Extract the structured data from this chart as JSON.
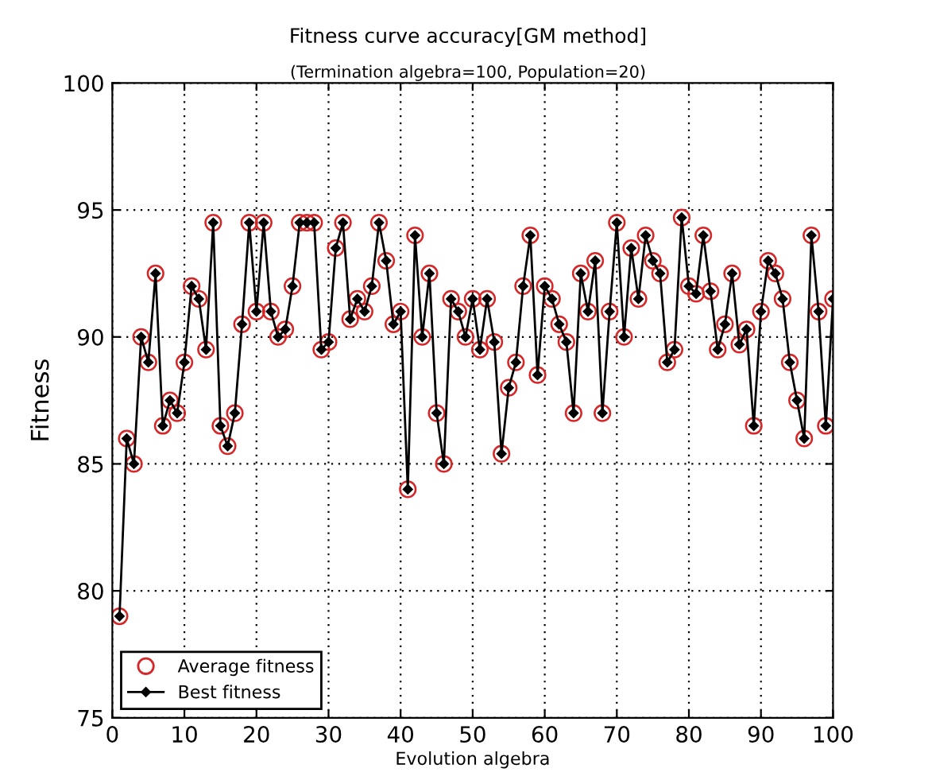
{
  "chart_data": {
    "type": "line",
    "title": "Fitness curve accuracy[GM method]",
    "subtitle": "(Termination algebra=100, Population=20)",
    "xlabel": "Evolution algebra",
    "ylabel": "Fitness",
    "x": [
      1,
      2,
      3,
      4,
      5,
      6,
      7,
      8,
      9,
      10,
      11,
      12,
      13,
      14,
      15,
      16,
      17,
      18,
      19,
      20,
      21,
      22,
      23,
      24,
      25,
      26,
      27,
      28,
      29,
      30,
      31,
      32,
      33,
      34,
      35,
      36,
      37,
      38,
      39,
      40,
      41,
      42,
      43,
      44,
      45,
      46,
      47,
      48,
      49,
      50,
      51,
      52,
      53,
      54,
      55,
      56,
      57,
      58,
      59,
      60,
      61,
      62,
      63,
      64,
      65,
      66,
      67,
      68,
      69,
      70,
      71,
      72,
      73,
      74,
      75,
      76,
      77,
      78,
      79,
      80,
      81,
      82,
      83,
      84,
      85,
      86,
      87,
      88,
      89,
      90,
      91,
      92,
      93,
      94,
      95,
      96,
      97,
      98,
      99,
      100
    ],
    "series": [
      {
        "name": "Average fitness",
        "color": "#d62728",
        "type": "scatter",
        "marker": "circle",
        "values": [
          79,
          86,
          85,
          90,
          89,
          92.5,
          86.5,
          87.5,
          87,
          89,
          92,
          91.5,
          89.5,
          94.5,
          86.5,
          85.7,
          87,
          90.5,
          94.5,
          91,
          94.5,
          91,
          90,
          90.3,
          92,
          94.5,
          94.5,
          94.5,
          89.5,
          89.8,
          93.5,
          94.5,
          90.7,
          91.5,
          91,
          92,
          94.5,
          93,
          90.5,
          91,
          84,
          94,
          90,
          92.5,
          87,
          85,
          91.5,
          91,
          90,
          91.5,
          89.5,
          91.5,
          89.8,
          85.4,
          88,
          89,
          92,
          94,
          88.5,
          92,
          91.5,
          90.5,
          89.8,
          87,
          92.5,
          91,
          93,
          87,
          91,
          94.5,
          90,
          93.5,
          91.5,
          94,
          93,
          92.5,
          89,
          89.5,
          94.7,
          92,
          91.7,
          94,
          91.8,
          89.5,
          90.5,
          92.5,
          89.7,
          90.3,
          86.5,
          91,
          93,
          92.5,
          91.5,
          89,
          87.5,
          86,
          94,
          91,
          86.5,
          91.5
        ]
      },
      {
        "name": "Best fitness",
        "color": "#000000",
        "marker": "diamond",
        "line_style": "solid",
        "values": [
          79,
          86,
          85,
          90,
          89,
          92.5,
          86.5,
          87.5,
          87,
          89,
          92,
          91.5,
          89.5,
          94.5,
          86.5,
          85.7,
          87,
          90.5,
          94.5,
          91,
          94.5,
          91,
          90,
          90.3,
          92,
          94.5,
          94.5,
          94.5,
          89.5,
          89.8,
          93.5,
          94.5,
          90.7,
          91.5,
          91,
          92,
          94.5,
          93,
          90.5,
          91,
          84,
          94,
          90,
          92.5,
          87,
          85,
          91.5,
          91,
          90,
          91.5,
          89.5,
          91.5,
          89.8,
          85.4,
          88,
          89,
          92,
          94,
          88.5,
          92,
          91.5,
          90.5,
          89.8,
          87,
          92.5,
          91,
          93,
          87,
          91,
          94.5,
          90,
          93.5,
          91.5,
          94,
          93,
          92.5,
          89,
          89.5,
          94.7,
          92,
          91.7,
          94,
          91.8,
          89.5,
          90.5,
          92.5,
          89.7,
          90.3,
          86.5,
          91,
          93,
          92.5,
          91.5,
          89,
          87.5,
          86,
          94,
          91,
          86.5,
          91.5
        ]
      }
    ],
    "xlim": [
      0,
      100
    ],
    "ylim": [
      75,
      100
    ],
    "xticks": [
      0,
      10,
      20,
      30,
      40,
      50,
      60,
      70,
      80,
      90,
      100
    ],
    "yticks": [
      75,
      80,
      85,
      90,
      95,
      100
    ],
    "grid": true,
    "legend": "bottom left"
  }
}
